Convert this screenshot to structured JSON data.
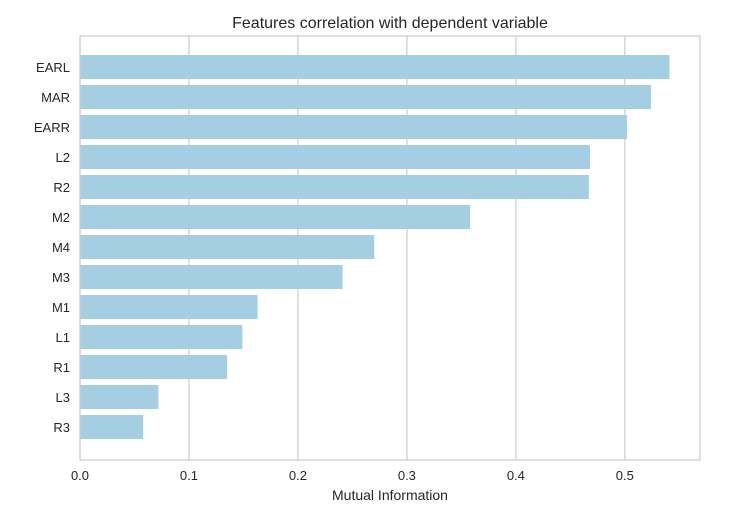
{
  "chart_data": {
    "type": "bar",
    "orientation": "horizontal",
    "title": "Features correlation with dependent variable",
    "xlabel": "Mutual Information",
    "ylabel": "",
    "categories": [
      "EARL",
      "MAR",
      "EARR",
      "L2",
      "R2",
      "M2",
      "M4",
      "M3",
      "M1",
      "L1",
      "R1",
      "L3",
      "R3"
    ],
    "values": [
      0.541,
      0.524,
      0.502,
      0.468,
      0.467,
      0.358,
      0.27,
      0.241,
      0.163,
      0.149,
      0.135,
      0.072,
      0.058
    ],
    "xlim": [
      0.0,
      0.569
    ],
    "xticks": [
      0.0,
      0.1,
      0.2,
      0.3,
      0.4,
      0.5
    ],
    "xtick_labels": [
      "0.0",
      "0.1",
      "0.2",
      "0.3",
      "0.4",
      "0.5"
    ],
    "grid": "vertical",
    "legend": "none",
    "colors": {
      "bar": "#a6cee3",
      "grid": "#cccccc",
      "frame": "#cccccc",
      "text": "#262626"
    }
  }
}
